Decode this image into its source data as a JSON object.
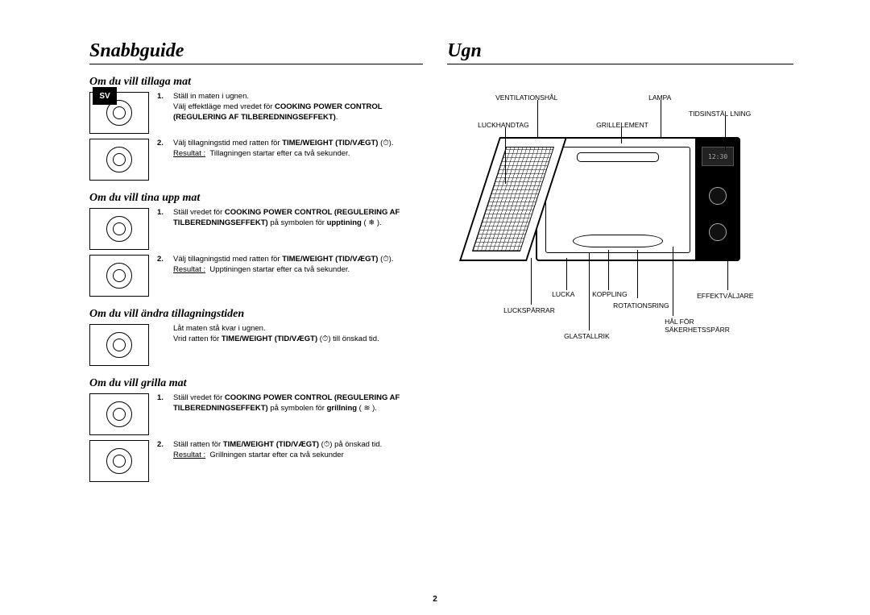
{
  "page_number": "2",
  "language_tab": "SV",
  "left": {
    "title": "Snabbguide",
    "sections": [
      {
        "heading": "Om du vill tillaga mat",
        "dials": 2,
        "steps": [
          {
            "n": "1.",
            "html": "Ställ in maten i ugnen.<br>Välj effektläge med vredet för <b>COOKING POWER CONTROL (REGULERING AF TILBEREDNINGSEFFEKT)</b>."
          },
          {
            "n": "2.",
            "html": "Välj tillagningstid med ratten för <b>TIME/WEIGHT (TID/VÆGT)</b> (⏱).<br><span class='uline'>Resultat :</span>&nbsp;&nbsp;Tillagningen startar efter ca två sekunder."
          }
        ]
      },
      {
        "heading": "Om du vill tina upp mat",
        "dials": 2,
        "steps": [
          {
            "n": "1.",
            "html": "Ställ vredet för <b>COOKING POWER CONTROL (REGULERING AF TILBEREDNINGSEFFEKT)</b> på symbolen för <b>upptining</b> ( ❄ )."
          },
          {
            "n": "2.",
            "html": "Välj tillagningstid med ratten för <b>TIME/WEIGHT (TID/VÆGT)</b> (⏱).<br><span class='uline'>Resultat :</span>&nbsp;&nbsp;Upptiningen startar efter ca två sekunder."
          }
        ]
      },
      {
        "heading": "Om du vill ändra tillagningstiden",
        "dials": 1,
        "steps": [
          {
            "n": "",
            "html": "Låt maten stå kvar i ugnen.<br>Vrid ratten för <b>TIME/WEIGHT (TID/VÆGT)</b> (⏱) till önskad tid."
          }
        ]
      },
      {
        "heading": "Om du vill grilla mat",
        "dials": 2,
        "steps": [
          {
            "n": "1.",
            "html": "Ställ vredet för <b>COOKING POWER CONTROL (REGULERING AF TILBEREDNINGSEFFEKT)</b> på symbolen för <b>grillning</b> ( ≋ )."
          },
          {
            "n": "2.",
            "html": "Ställ ratten för <b>TIME/WEIGHT (TID/VÆGT)</b> (⏱) på önskad tid.<br><span class='uline'>Resultat :</span>&nbsp;&nbsp;Grillningen startar efter ca två sekunder"
          }
        ]
      }
    ]
  },
  "right": {
    "title": "Ugn",
    "labels": {
      "ventilationshal": "VENTILATIONSHÅL",
      "lampa": "LAMPA",
      "tidsinstallning": "TIDSINSTÄL LNING",
      "luckhandtag": "LUCKHANDTAG",
      "grillelement": "GRILLELEMENT",
      "lucka": "LUCKA",
      "koppling": "KOPPLING",
      "effektvaljare": "EFFEKTVÄLJARE",
      "lucksparrar": "LUCKSPÄRRAR",
      "rotationsring": "ROTATIONSRING",
      "hal_for_sakerhetssparr": "HÅL FÖR\nSÄKERHETSSPÄRR",
      "glastallrik": "GLASTALLRIK"
    },
    "display_text": "12:30"
  }
}
